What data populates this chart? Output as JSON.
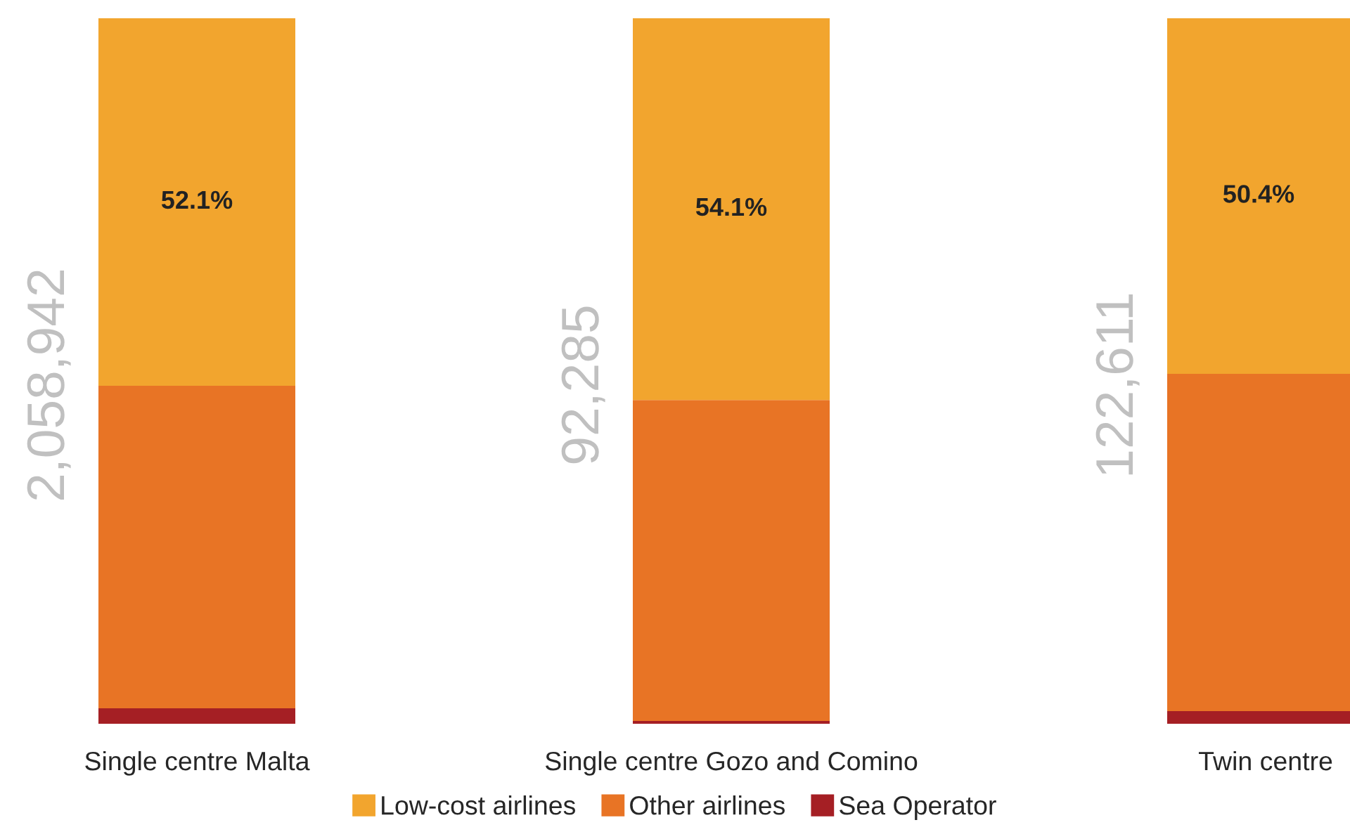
{
  "chart_data": {
    "type": "bar",
    "stacked": true,
    "ylim": [
      0,
      100
    ],
    "tick_labels": "x",
    "categories": [
      "Single centre Malta",
      "Single centre Gozo and Comino",
      "Twin centre"
    ],
    "series": [
      {
        "name": "Sea Operator",
        "color": "#a51f24",
        "values": [
          2.2,
          0.4,
          1.8
        ]
      },
      {
        "name": "Other airlines",
        "color": "#e87425",
        "values": [
          45.7,
          45.5,
          47.8
        ]
      },
      {
        "name": "Low-cost airlines",
        "color": "#f2a52e",
        "values": [
          52.1,
          54.1,
          50.4
        ],
        "value_labels": [
          "52.1%",
          "54.1%",
          "50.4%"
        ]
      }
    ],
    "annotations": [
      "2,058,942",
      "92,285",
      "122,611"
    ],
    "legend": "bottom",
    "grid": false
  }
}
